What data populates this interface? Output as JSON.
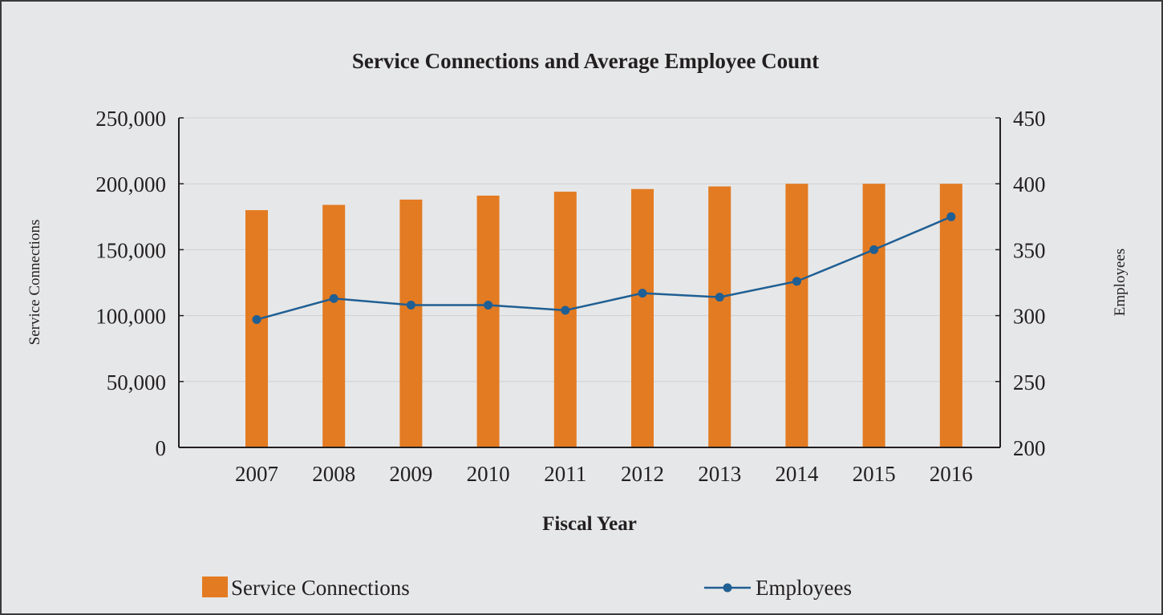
{
  "chart_data": {
    "type": "bar",
    "title": "Service Connections and Average Employee Count",
    "xlabel": "Fiscal Year",
    "ylabel": "Service Connections",
    "y2label": "Employees",
    "categories": [
      "2007",
      "2008",
      "2009",
      "2010",
      "2011",
      "2012",
      "2013",
      "2014",
      "2015",
      "2016"
    ],
    "ylim": [
      0,
      250000
    ],
    "y_ticks": [
      0,
      50000,
      100000,
      150000,
      200000,
      250000
    ],
    "y_tick_labels": [
      "0",
      "50,000",
      "100,000",
      "150,000",
      "200,000",
      "250,000"
    ],
    "y2lim": [
      200,
      450
    ],
    "y2_ticks": [
      200,
      250,
      300,
      350,
      400,
      450
    ],
    "y2_tick_labels": [
      "200",
      "250",
      "300",
      "350",
      "400",
      "450"
    ],
    "grid": true,
    "legend_position": "bottom",
    "series": [
      {
        "name": "Service Connections",
        "type": "bar",
        "axis": "left",
        "color": "#e37b22",
        "values": [
          180000,
          184000,
          188000,
          191000,
          194000,
          196000,
          198000,
          200000,
          200000,
          200000
        ]
      },
      {
        "name": "Employees",
        "type": "line",
        "axis": "right",
        "color": "#1f5f94",
        "values": [
          297,
          313,
          308,
          308,
          304,
          317,
          314,
          326,
          350,
          375
        ]
      }
    ]
  }
}
